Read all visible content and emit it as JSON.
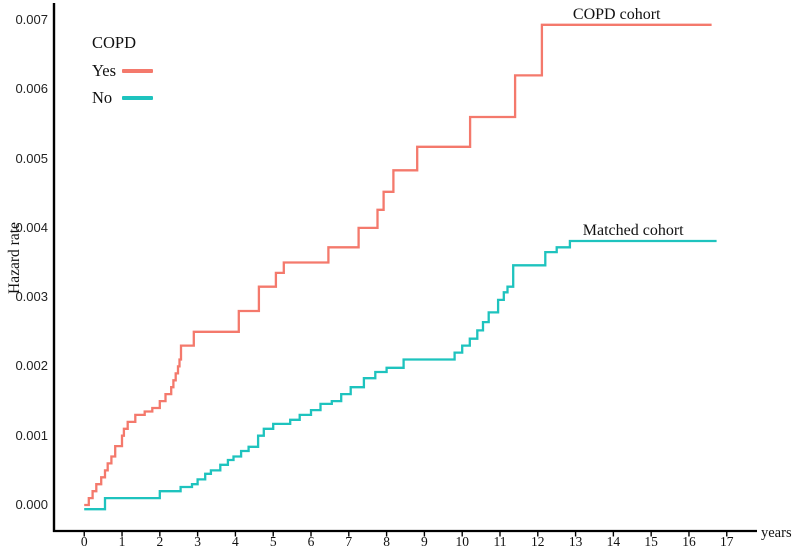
{
  "chart_data": {
    "type": "line",
    "subtype": "step-post-hazard",
    "title": "",
    "xlabel": "years",
    "ylabel": "Hazard rate",
    "grid": false,
    "axis_color": "#000000",
    "xlim": [
      -0.8,
      17.8
    ],
    "ylim": [
      -0.000375,
      0.007245
    ],
    "x_ticks": [
      "0",
      "1",
      "2",
      "3",
      "4",
      "5",
      "6",
      "7",
      "8",
      "9",
      "10",
      "11",
      "12",
      "13",
      "14",
      "15",
      "16",
      "17"
    ],
    "y_ticks": [
      {
        "label": "0.000",
        "value": 0.0
      },
      {
        "label": "0.001",
        "value": 0.001
      },
      {
        "label": "0.002",
        "value": 0.002
      },
      {
        "label": "0.003",
        "value": 0.003
      },
      {
        "label": "0.004",
        "value": 0.004
      },
      {
        "label": "0.005",
        "value": 0.005
      },
      {
        "label": "0.006",
        "value": 0.006
      },
      {
        "label": "0.007",
        "value": 0.007
      }
    ],
    "legend": {
      "title": "COPD",
      "position": "upper-left",
      "entries": [
        {
          "label": "Yes",
          "color": "#F4796C"
        },
        {
          "label": "No",
          "color": "#1EC3BE"
        }
      ]
    },
    "series": [
      {
        "name": "Matched cohort",
        "color": "#1EC3BE",
        "stroke_width": 2.3,
        "points": [
          [
            0,
            -6e-05
          ],
          [
            0.55,
            0.0001
          ],
          [
            2.0,
            0.0002
          ],
          [
            2.55,
            0.00026
          ],
          [
            2.85,
            0.0003
          ],
          [
            3.0,
            0.00037
          ],
          [
            3.2,
            0.00045
          ],
          [
            3.35,
            0.0005
          ],
          [
            3.6,
            0.00058
          ],
          [
            3.8,
            0.00065
          ],
          [
            3.95,
            0.0007
          ],
          [
            4.15,
            0.00078
          ],
          [
            4.35,
            0.00084
          ],
          [
            4.6,
            0.001
          ],
          [
            4.75,
            0.0011
          ],
          [
            5.0,
            0.00117
          ],
          [
            5.45,
            0.00123
          ],
          [
            5.7,
            0.0013
          ],
          [
            6.0,
            0.00137
          ],
          [
            6.25,
            0.00146
          ],
          [
            6.55,
            0.0015
          ],
          [
            6.8,
            0.0016
          ],
          [
            7.05,
            0.0017
          ],
          [
            7.4,
            0.00183
          ],
          [
            7.7,
            0.00192
          ],
          [
            8.0,
            0.00198
          ],
          [
            8.45,
            0.0021
          ],
          [
            9.8,
            0.0022
          ],
          [
            10.0,
            0.0023
          ],
          [
            10.2,
            0.0024
          ],
          [
            10.4,
            0.00252
          ],
          [
            10.55,
            0.00264
          ],
          [
            10.7,
            0.00278
          ],
          [
            10.95,
            0.00296
          ],
          [
            11.1,
            0.00307
          ],
          [
            11.2,
            0.00315
          ],
          [
            11.35,
            0.00346
          ],
          [
            12.2,
            0.00365
          ],
          [
            12.5,
            0.00372
          ],
          [
            12.85,
            0.00381
          ],
          [
            16.73,
            0.00381
          ]
        ]
      },
      {
        "name": "COPD cohort",
        "color": "#F4796C",
        "stroke_width": 2.3,
        "points": [
          [
            0,
            0
          ],
          [
            0.12,
            0.0001
          ],
          [
            0.22,
            0.0002
          ],
          [
            0.32,
            0.0003
          ],
          [
            0.45,
            0.0004
          ],
          [
            0.55,
            0.0005
          ],
          [
            0.62,
            0.0006
          ],
          [
            0.72,
            0.0007
          ],
          [
            0.82,
            0.00085
          ],
          [
            1.0,
            0.001
          ],
          [
            1.05,
            0.0011
          ],
          [
            1.15,
            0.0012
          ],
          [
            1.35,
            0.0013
          ],
          [
            1.6,
            0.00135
          ],
          [
            1.8,
            0.0014
          ],
          [
            2.0,
            0.0015
          ],
          [
            2.15,
            0.0016
          ],
          [
            2.3,
            0.0017
          ],
          [
            2.36,
            0.0018
          ],
          [
            2.42,
            0.0019
          ],
          [
            2.48,
            0.002
          ],
          [
            2.52,
            0.0021
          ],
          [
            2.56,
            0.0023
          ],
          [
            2.9,
            0.0025
          ],
          [
            4.09,
            0.0028
          ],
          [
            4.62,
            0.00315
          ],
          [
            5.07,
            0.00335
          ],
          [
            5.28,
            0.0035
          ],
          [
            6.46,
            0.00372
          ],
          [
            7.26,
            0.004
          ],
          [
            7.76,
            0.00426
          ],
          [
            7.92,
            0.00452
          ],
          [
            8.18,
            0.00483
          ],
          [
            8.81,
            0.00517
          ],
          [
            10.21,
            0.0056
          ],
          [
            11.4,
            0.0062
          ],
          [
            12.11,
            0.00693
          ],
          [
            16.6,
            0.00693
          ]
        ]
      }
    ],
    "annotations": [
      {
        "text": "COPD cohort",
        "x": 12.93,
        "y": 0.0072
      },
      {
        "text": "Matched cohort",
        "x": 13.19,
        "y": 0.004085
      }
    ]
  }
}
